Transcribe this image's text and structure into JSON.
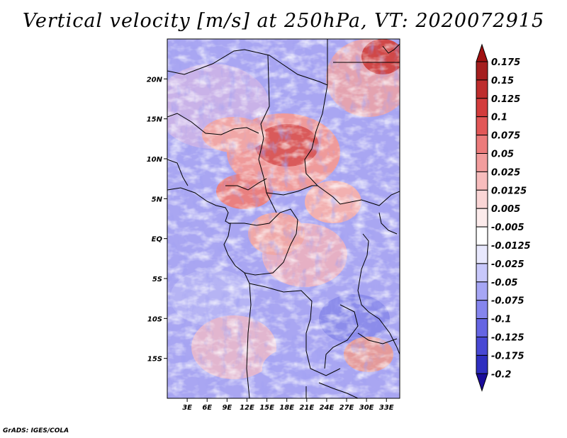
{
  "title": "Vertical velocity [m/s] at 250hPa, VT: 2020072915",
  "credit": "GrADS: IGES/COLA",
  "map": {
    "lat_range": [
      -20,
      25
    ],
    "lon_range": [
      0,
      35
    ],
    "lat_ticks": [
      {
        "value": 20,
        "label": "20N"
      },
      {
        "value": 15,
        "label": "15N"
      },
      {
        "value": 10,
        "label": "10N"
      },
      {
        "value": 5,
        "label": "5N"
      },
      {
        "value": 0,
        "label": "EQ"
      },
      {
        "value": -5,
        "label": "5S"
      },
      {
        "value": -10,
        "label": "10S"
      },
      {
        "value": -15,
        "label": "15S"
      }
    ],
    "lon_ticks": [
      {
        "value": 3,
        "label": "3E"
      },
      {
        "value": 6,
        "label": "6E"
      },
      {
        "value": 9,
        "label": "9E"
      },
      {
        "value": 12,
        "label": "12E"
      },
      {
        "value": 15,
        "label": "15E"
      },
      {
        "value": 18,
        "label": "18E"
      },
      {
        "value": 21,
        "label": "21E"
      },
      {
        "value": 24,
        "label": "24E"
      },
      {
        "value": 27,
        "label": "27E"
      },
      {
        "value": 30,
        "label": "30E"
      },
      {
        "value": 33,
        "label": "33E"
      }
    ]
  },
  "colorbar": {
    "levels": [
      {
        "label": "0.175",
        "color": "#a51e1e"
      },
      {
        "label": "0.15",
        "color": "#be2d2d"
      },
      {
        "label": "0.125",
        "color": "#d33c3c"
      },
      {
        "label": "0.1",
        "color": "#e25757"
      },
      {
        "label": "0.075",
        "color": "#ec7b7b"
      },
      {
        "label": "0.05",
        "color": "#f29d9d"
      },
      {
        "label": "0.025",
        "color": "#f7bcbc"
      },
      {
        "label": "0.0125",
        "color": "#fad5d5"
      },
      {
        "label": "0.005",
        "color": "#fcebeb"
      },
      {
        "label": "-0.005",
        "color": "#ffffff"
      },
      {
        "label": "-0.0125",
        "color": "#e8e8fd"
      },
      {
        "label": "-0.025",
        "color": "#c8c8fb"
      },
      {
        "label": "-0.05",
        "color": "#a6a6f5"
      },
      {
        "label": "-0.075",
        "color": "#8585ee"
      },
      {
        "label": "-0.1",
        "color": "#6565e3"
      },
      {
        "label": "-0.125",
        "color": "#4848d4"
      },
      {
        "label": "-0.175",
        "color": "#2f2fc0"
      },
      {
        "label": "-0.2",
        "color": "#1c1ca8"
      }
    ],
    "top_color": "#a01010",
    "bottom_color": "#1a0c9a"
  }
}
